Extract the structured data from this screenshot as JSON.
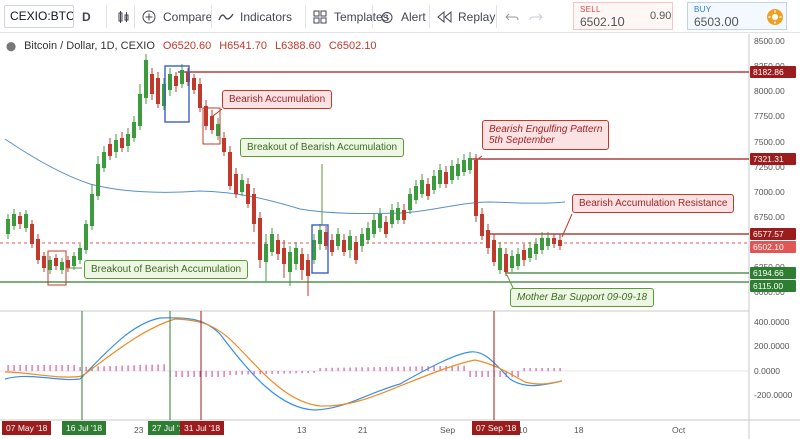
{
  "toolbar": {
    "symbol": "CEXIO:BTCUSD",
    "interval": "D",
    "compare_label": "Compare",
    "indicators_label": "Indicators",
    "templates_label": "Templates",
    "alert_label": "Alert",
    "replay_label": "Replay",
    "sell": {
      "label": "SELL",
      "price_main": "6502",
      "price_frac": ".10"
    },
    "spread": "0.90",
    "buy": {
      "label": "BUY",
      "price_main": "6503",
      "price_frac": ".00"
    }
  },
  "legend": {
    "title": "Bitcoin / Dollar, 1D, CEXIO",
    "open": "O6520.60",
    "high": "H6541.70",
    "low": "L6388.60",
    "close": "C6502.10"
  },
  "annotations": {
    "bearish_accumulation": "Bearish Accumulation",
    "breakout_top": "Breakout of Bearish Accumulation",
    "breakout_left": "Breakout of Bearish Accumulation",
    "engulfing_line1": "Bearish Engulfing Pattern",
    "engulfing_line2": "5th September",
    "resistance": "Bearish Accumulation Resistance",
    "mother_bar": "Mother Bar Support 09-09-18"
  },
  "price_axis": {
    "ticks": [
      "8500.00",
      "8250.00",
      "8000.00",
      "7750.00",
      "7500.00",
      "7250.00",
      "7000.00",
      "6750.00",
      "6250.00",
      "6000.00"
    ],
    "tags": {
      "level_8182": "8182.86",
      "level_7321": "7321.31",
      "level_6577": "6577.57",
      "current": "6502.10",
      "level_6194": "6194.66",
      "level_6115": "6115.00"
    }
  },
  "osc_axis": {
    "ticks": [
      "400.0000",
      "200.0000",
      "0.0000",
      "-200.0000"
    ]
  },
  "time_axis": {
    "labels": [
      "23",
      "13",
      "21",
      "Sep",
      "10",
      "18",
      "Oct"
    ],
    "tags": {
      "may7": "07 May '18",
      "jul16": "16 Jul '18",
      "jul27": "27 Jul '18",
      "jul31": "31 Jul '18",
      "sep7": "07 Sep '18"
    }
  },
  "colors": {
    "up": "#3c9b3c",
    "down": "#c0392b",
    "level_red": "#9b1c1c",
    "level_green": "#2e7d32",
    "ma": "#5a8fc8",
    "macd": "#3a8ee6",
    "signal": "#f08a24",
    "hist": "#d85aa0"
  }
}
